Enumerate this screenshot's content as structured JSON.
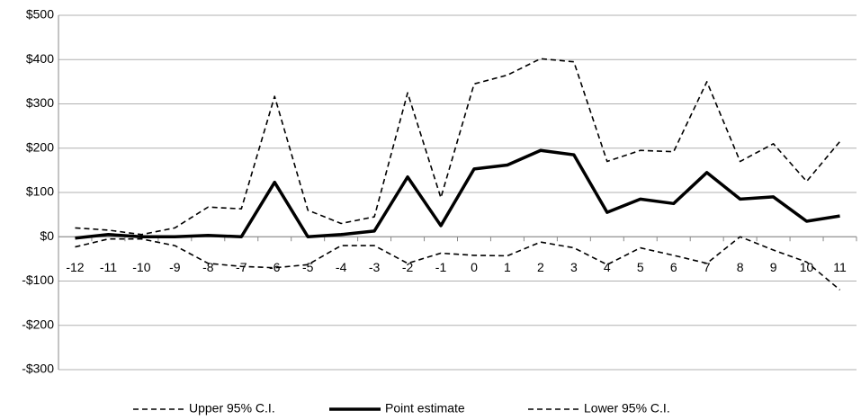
{
  "chart_data": {
    "type": "line",
    "categories": [
      "-12",
      "-11",
      "-10",
      "-9",
      "-8",
      "-7",
      "-6",
      "-5",
      "-4",
      "-3",
      "-2",
      "-1",
      "0",
      "1",
      "2",
      "3",
      "4",
      "5",
      "6",
      "7",
      "8",
      "9",
      "10",
      "11"
    ],
    "series": [
      {
        "name": "Upper 95% C.I.",
        "color": "#000000",
        "dashed": true,
        "values": [
          20,
          15,
          5,
          20,
          67,
          63,
          317,
          60,
          30,
          45,
          325,
          88,
          345,
          365,
          402,
          395,
          170,
          195,
          192,
          350,
          170,
          210,
          125,
          215
        ]
      },
      {
        "name": "Point estimate",
        "color": "#000000",
        "dashed": false,
        "values": [
          -3,
          5,
          0,
          0,
          3,
          0,
          123,
          0,
          5,
          13,
          135,
          25,
          153,
          162,
          195,
          185,
          55,
          85,
          75,
          145,
          85,
          90,
          35,
          47
        ]
      },
      {
        "name": "Lower 95% C.I.",
        "color": "#000000",
        "dashed": true,
        "values": [
          -23,
          -5,
          -5,
          -20,
          -60,
          -67,
          -70,
          -63,
          -20,
          -20,
          -60,
          -37,
          -42,
          -43,
          -12,
          -25,
          -63,
          -25,
          -42,
          -60,
          0,
          -30,
          -57,
          -120
        ]
      }
    ],
    "ylim": [
      -300,
      500
    ],
    "yticks": [
      {
        "value": -300,
        "label": "-$300"
      },
      {
        "value": -200,
        "label": "-$200"
      },
      {
        "value": -100,
        "label": "-$100"
      },
      {
        "value": 0,
        "label": "$0"
      },
      {
        "value": 100,
        "label": "$100"
      },
      {
        "value": 200,
        "label": "$200"
      },
      {
        "value": 300,
        "label": "$300"
      },
      {
        "value": 400,
        "label": "$400"
      },
      {
        "value": 500,
        "label": "$500"
      }
    ],
    "grid": true,
    "legend": "bottom"
  }
}
